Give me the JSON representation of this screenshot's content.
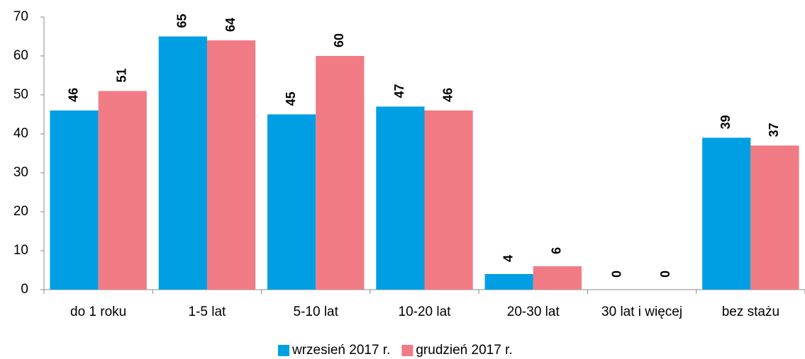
{
  "chart_data": {
    "type": "bar",
    "categories": [
      "do 1 roku",
      "1-5 lat",
      "5-10 lat",
      "10-20 lat",
      "20-30 lat",
      "30 lat i więcej",
      "bez stażu"
    ],
    "series": [
      {
        "name": "wrzesień 2017 r.",
        "color": "#009fe3",
        "values": [
          46,
          65,
          45,
          47,
          4,
          0,
          39
        ]
      },
      {
        "name": "grudzień 2017 r.",
        "color": "#f07b84",
        "values": [
          51,
          64,
          60,
          46,
          6,
          0,
          37
        ]
      }
    ],
    "ylim": [
      0,
      70
    ],
    "yticks": [
      0,
      10,
      20,
      30,
      40,
      50,
      60,
      70
    ],
    "grid": false,
    "legend": "bottom"
  }
}
